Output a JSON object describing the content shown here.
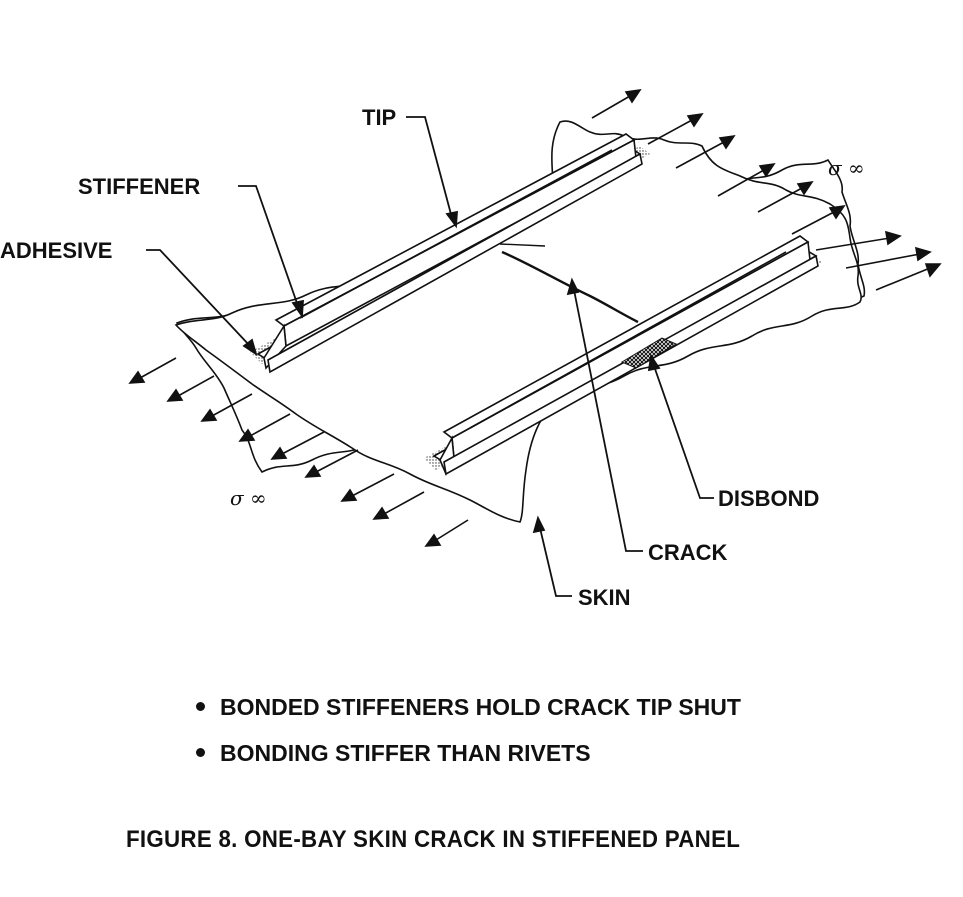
{
  "labels": {
    "tip": "TIP",
    "stiffener": "STIFFENER",
    "adhesive": "ADHESIVE",
    "sigma_right": "σ ∞",
    "sigma_left": "σ ∞",
    "disbond": "DISBOND",
    "crack": "CRACK",
    "skin": "SKIN"
  },
  "bullets": [
    "BONDED STIFFENERS HOLD CRACK TIP SHUT",
    "BONDING STIFFER THAN RIVETS"
  ],
  "caption": "FIGURE 8.  ONE-BAY SKIN CRACK IN STIFFENED PANEL",
  "colors": {
    "ink": "#111111",
    "paper": "#ffffff"
  }
}
